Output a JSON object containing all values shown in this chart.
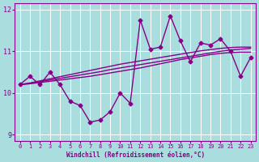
{
  "x": [
    0,
    1,
    2,
    3,
    4,
    5,
    6,
    7,
    8,
    9,
    10,
    11,
    12,
    13,
    14,
    15,
    16,
    17,
    18,
    19,
    20,
    21,
    22,
    23
  ],
  "y_main": [
    10.2,
    10.4,
    10.2,
    10.5,
    10.2,
    9.8,
    9.7,
    9.3,
    9.35,
    9.55,
    10.0,
    9.75,
    11.75,
    11.05,
    11.1,
    11.85,
    11.25,
    10.75,
    11.2,
    11.15,
    11.3,
    11.0,
    10.4,
    10.85
  ],
  "y_trend1": [
    10.2,
    10.22,
    10.25,
    10.28,
    10.31,
    10.34,
    10.37,
    10.4,
    10.44,
    10.48,
    10.52,
    10.56,
    10.6,
    10.65,
    10.7,
    10.75,
    10.8,
    10.84,
    10.88,
    10.92,
    10.95,
    10.97,
    10.98,
    10.98
  ],
  "y_trend2": [
    10.2,
    10.23,
    10.27,
    10.31,
    10.35,
    10.39,
    10.43,
    10.47,
    10.51,
    10.56,
    10.6,
    10.64,
    10.68,
    10.72,
    10.76,
    10.8,
    10.84,
    10.88,
    10.92,
    10.96,
    11.0,
    11.03,
    11.05,
    11.07
  ],
  "y_trend3": [
    10.2,
    10.24,
    10.29,
    10.34,
    10.39,
    10.44,
    10.49,
    10.54,
    10.59,
    10.64,
    10.69,
    10.73,
    10.77,
    10.81,
    10.85,
    10.89,
    10.93,
    10.97,
    11.01,
    11.04,
    11.07,
    11.09,
    11.1,
    11.1
  ],
  "line_color": "#880088",
  "bg_color": "#aadddd",
  "grid_color": "#ffffff",
  "xlabel": "Windchill (Refroidissement éolien,°C)",
  "xlim": [
    -0.5,
    23.5
  ],
  "ylim": [
    8.85,
    12.15
  ],
  "yticks": [
    9,
    10,
    11,
    12
  ],
  "xticks": [
    0,
    1,
    2,
    3,
    4,
    5,
    6,
    7,
    8,
    9,
    10,
    11,
    12,
    13,
    14,
    15,
    16,
    17,
    18,
    19,
    20,
    21,
    22,
    23
  ],
  "marker": "D",
  "markersize": 2.5,
  "linewidth": 1.0
}
